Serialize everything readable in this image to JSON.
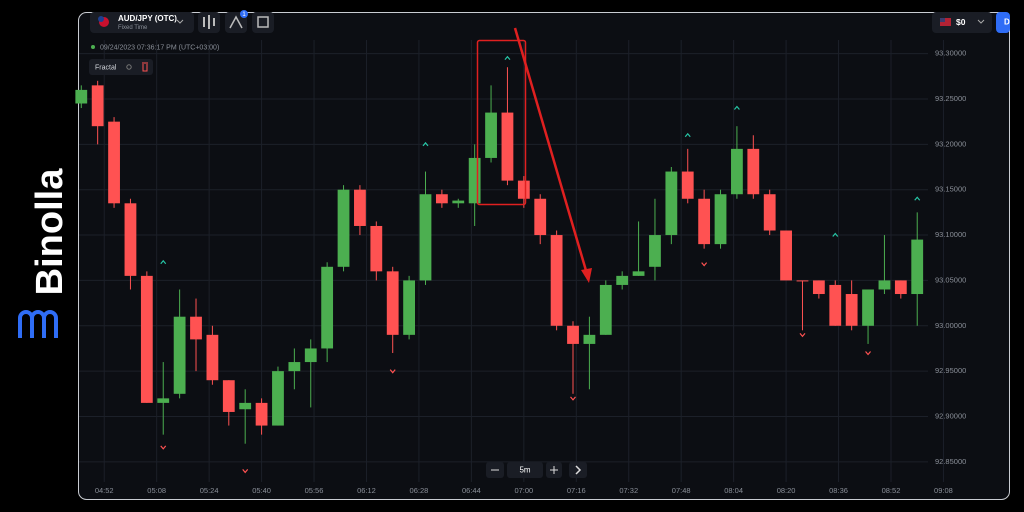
{
  "ui": {
    "brand": "Binolla",
    "asset": "AUD/JPY (OTC)",
    "mode": "Fixed Time",
    "balance": "$0",
    "deposit": "D",
    "badge": "1",
    "timestamp": "09/24/2023 07:36:17 PM (UTC+03:00)",
    "indicator": "Fractal",
    "timeframe": "5m"
  },
  "chart_data": {
    "type": "candlestick",
    "up_color": "#4caf50",
    "down_color": "#ff5252",
    "grid": true,
    "x": [
      285,
      290,
      295,
      300,
      305,
      310,
      315,
      320,
      325,
      330,
      335,
      340,
      345,
      350,
      355,
      360,
      365,
      370,
      375,
      380,
      385,
      390,
      395,
      400,
      405,
      410,
      415,
      420,
      425,
      430,
      435,
      440,
      445,
      450,
      455,
      460,
      465,
      470,
      475,
      480,
      485,
      490,
      495,
      500,
      505,
      510,
      515,
      520,
      525,
      530,
      535,
      540
    ],
    "open": [
      93.245,
      93.265,
      93.225,
      93.135,
      93.055,
      92.915,
      92.925,
      93.01,
      92.99,
      92.94,
      92.908,
      92.915,
      92.89,
      92.95,
      92.96,
      92.975,
      93.065,
      93.15,
      93.11,
      93.06,
      92.99,
      93.05,
      93.145,
      93.135,
      93.135,
      93.185,
      93.235,
      93.16,
      93.14,
      93.1,
      93.0,
      92.98,
      92.99,
      93.045,
      93.055,
      93.065,
      93.1,
      93.17,
      93.14,
      93.09,
      93.145,
      93.195,
      93.145,
      93.105,
      93.05,
      93.05,
      93.045,
      93.035,
      93.0,
      93.04,
      93.05,
      93.035
    ],
    "high": [
      93.265,
      93.27,
      93.23,
      93.14,
      93.06,
      92.96,
      93.04,
      93.03,
      93.0,
      92.94,
      92.93,
      92.92,
      92.955,
      92.975,
      92.985,
      93.07,
      93.155,
      93.155,
      93.115,
      93.065,
      93.055,
      93.17,
      93.15,
      93.14,
      93.2,
      93.265,
      93.285,
      93.165,
      93.145,
      93.105,
      93.005,
      93.01,
      93.05,
      93.06,
      93.115,
      93.14,
      93.175,
      93.195,
      93.15,
      93.15,
      93.22,
      93.21,
      93.15,
      93.105,
      93.05,
      93.05,
      93.05,
      93.05,
      93.04,
      93.1,
      93.05,
      93.125
    ],
    "low": [
      93.24,
      93.2,
      93.13,
      93.04,
      92.915,
      92.88,
      92.92,
      92.95,
      92.935,
      92.89,
      92.87,
      92.88,
      92.89,
      92.93,
      92.91,
      92.96,
      93.06,
      93.1,
      93.05,
      92.97,
      92.985,
      93.045,
      93.13,
      93.13,
      93.11,
      93.18,
      93.155,
      93.13,
      93.09,
      92.995,
      92.925,
      92.93,
      92.99,
      93.04,
      93.055,
      93.05,
      93.09,
      93.135,
      93.085,
      93.085,
      93.14,
      93.14,
      93.1,
      93.05,
      92.995,
      93.03,
      93.0,
      92.995,
      92.98,
      93.035,
      93.03,
      93.0
    ],
    "close": [
      93.26,
      93.22,
      93.135,
      93.055,
      92.915,
      92.92,
      93.01,
      92.985,
      92.94,
      92.905,
      92.915,
      92.89,
      92.95,
      92.96,
      92.975,
      93.065,
      93.15,
      93.11,
      93.06,
      92.99,
      93.05,
      93.145,
      93.135,
      93.138,
      93.185,
      93.235,
      93.16,
      93.14,
      93.1,
      93.0,
      92.98,
      92.99,
      93.045,
      93.055,
      93.06,
      93.1,
      93.17,
      93.14,
      93.09,
      93.145,
      93.195,
      93.145,
      93.105,
      93.05,
      93.049,
      93.035,
      93.0,
      93.0,
      93.04,
      93.05,
      93.035,
      93.095
    ],
    "fractals_up": {
      "color": "#26c6a6",
      "x": [
        310,
        390,
        415,
        470,
        485,
        515,
        540
      ],
      "y": [
        93.07,
        93.2,
        93.295,
        93.21,
        93.24,
        93.1,
        93.14
      ]
    },
    "fractals_down": {
      "color": "#ff5252",
      "x": [
        310,
        335,
        380,
        435,
        475,
        505,
        525
      ],
      "y": [
        92.866,
        92.84,
        92.95,
        92.92,
        93.068,
        92.99,
        92.97
      ]
    },
    "xlim": [
      284,
      550
    ],
    "xticks": [
      {
        "value": 292,
        "label": "04:52"
      },
      {
        "value": 308,
        "label": "05:08"
      },
      {
        "value": 324,
        "label": "05:24"
      },
      {
        "value": 340,
        "label": "05:40"
      },
      {
        "value": 356,
        "label": "05:56"
      },
      {
        "value": 372,
        "label": "06:12"
      },
      {
        "value": 388,
        "label": "06:28"
      },
      {
        "value": 404,
        "label": "06:44"
      },
      {
        "value": 420,
        "label": "07:00"
      },
      {
        "value": 436,
        "label": "07:16"
      },
      {
        "value": 452,
        "label": "07:32"
      },
      {
        "value": 468,
        "label": "07:48"
      },
      {
        "value": 484,
        "label": "08:04"
      },
      {
        "value": 500,
        "label": "08:20"
      },
      {
        "value": 516,
        "label": "08:36"
      },
      {
        "value": 532,
        "label": "08:52"
      },
      {
        "value": 548,
        "label": "09:08"
      }
    ],
    "ylim": [
      92.83,
      93.315
    ],
    "yticks": [
      {
        "value": 92.85,
        "label": "92.85000"
      },
      {
        "value": 92.9,
        "label": "92.90000"
      },
      {
        "value": 92.95,
        "label": "92.95000"
      },
      {
        "value": 93.0,
        "label": "93.00000"
      },
      {
        "value": 93.05,
        "label": "93.05000"
      },
      {
        "value": 93.1,
        "label": "93.10000"
      },
      {
        "value": 93.15,
        "label": "93.15000"
      },
      {
        "value": 93.2,
        "label": "93.20000"
      },
      {
        "value": 93.25,
        "label": "93.25000"
      },
      {
        "value": 93.3,
        "label": "93.30000"
      }
    ]
  }
}
